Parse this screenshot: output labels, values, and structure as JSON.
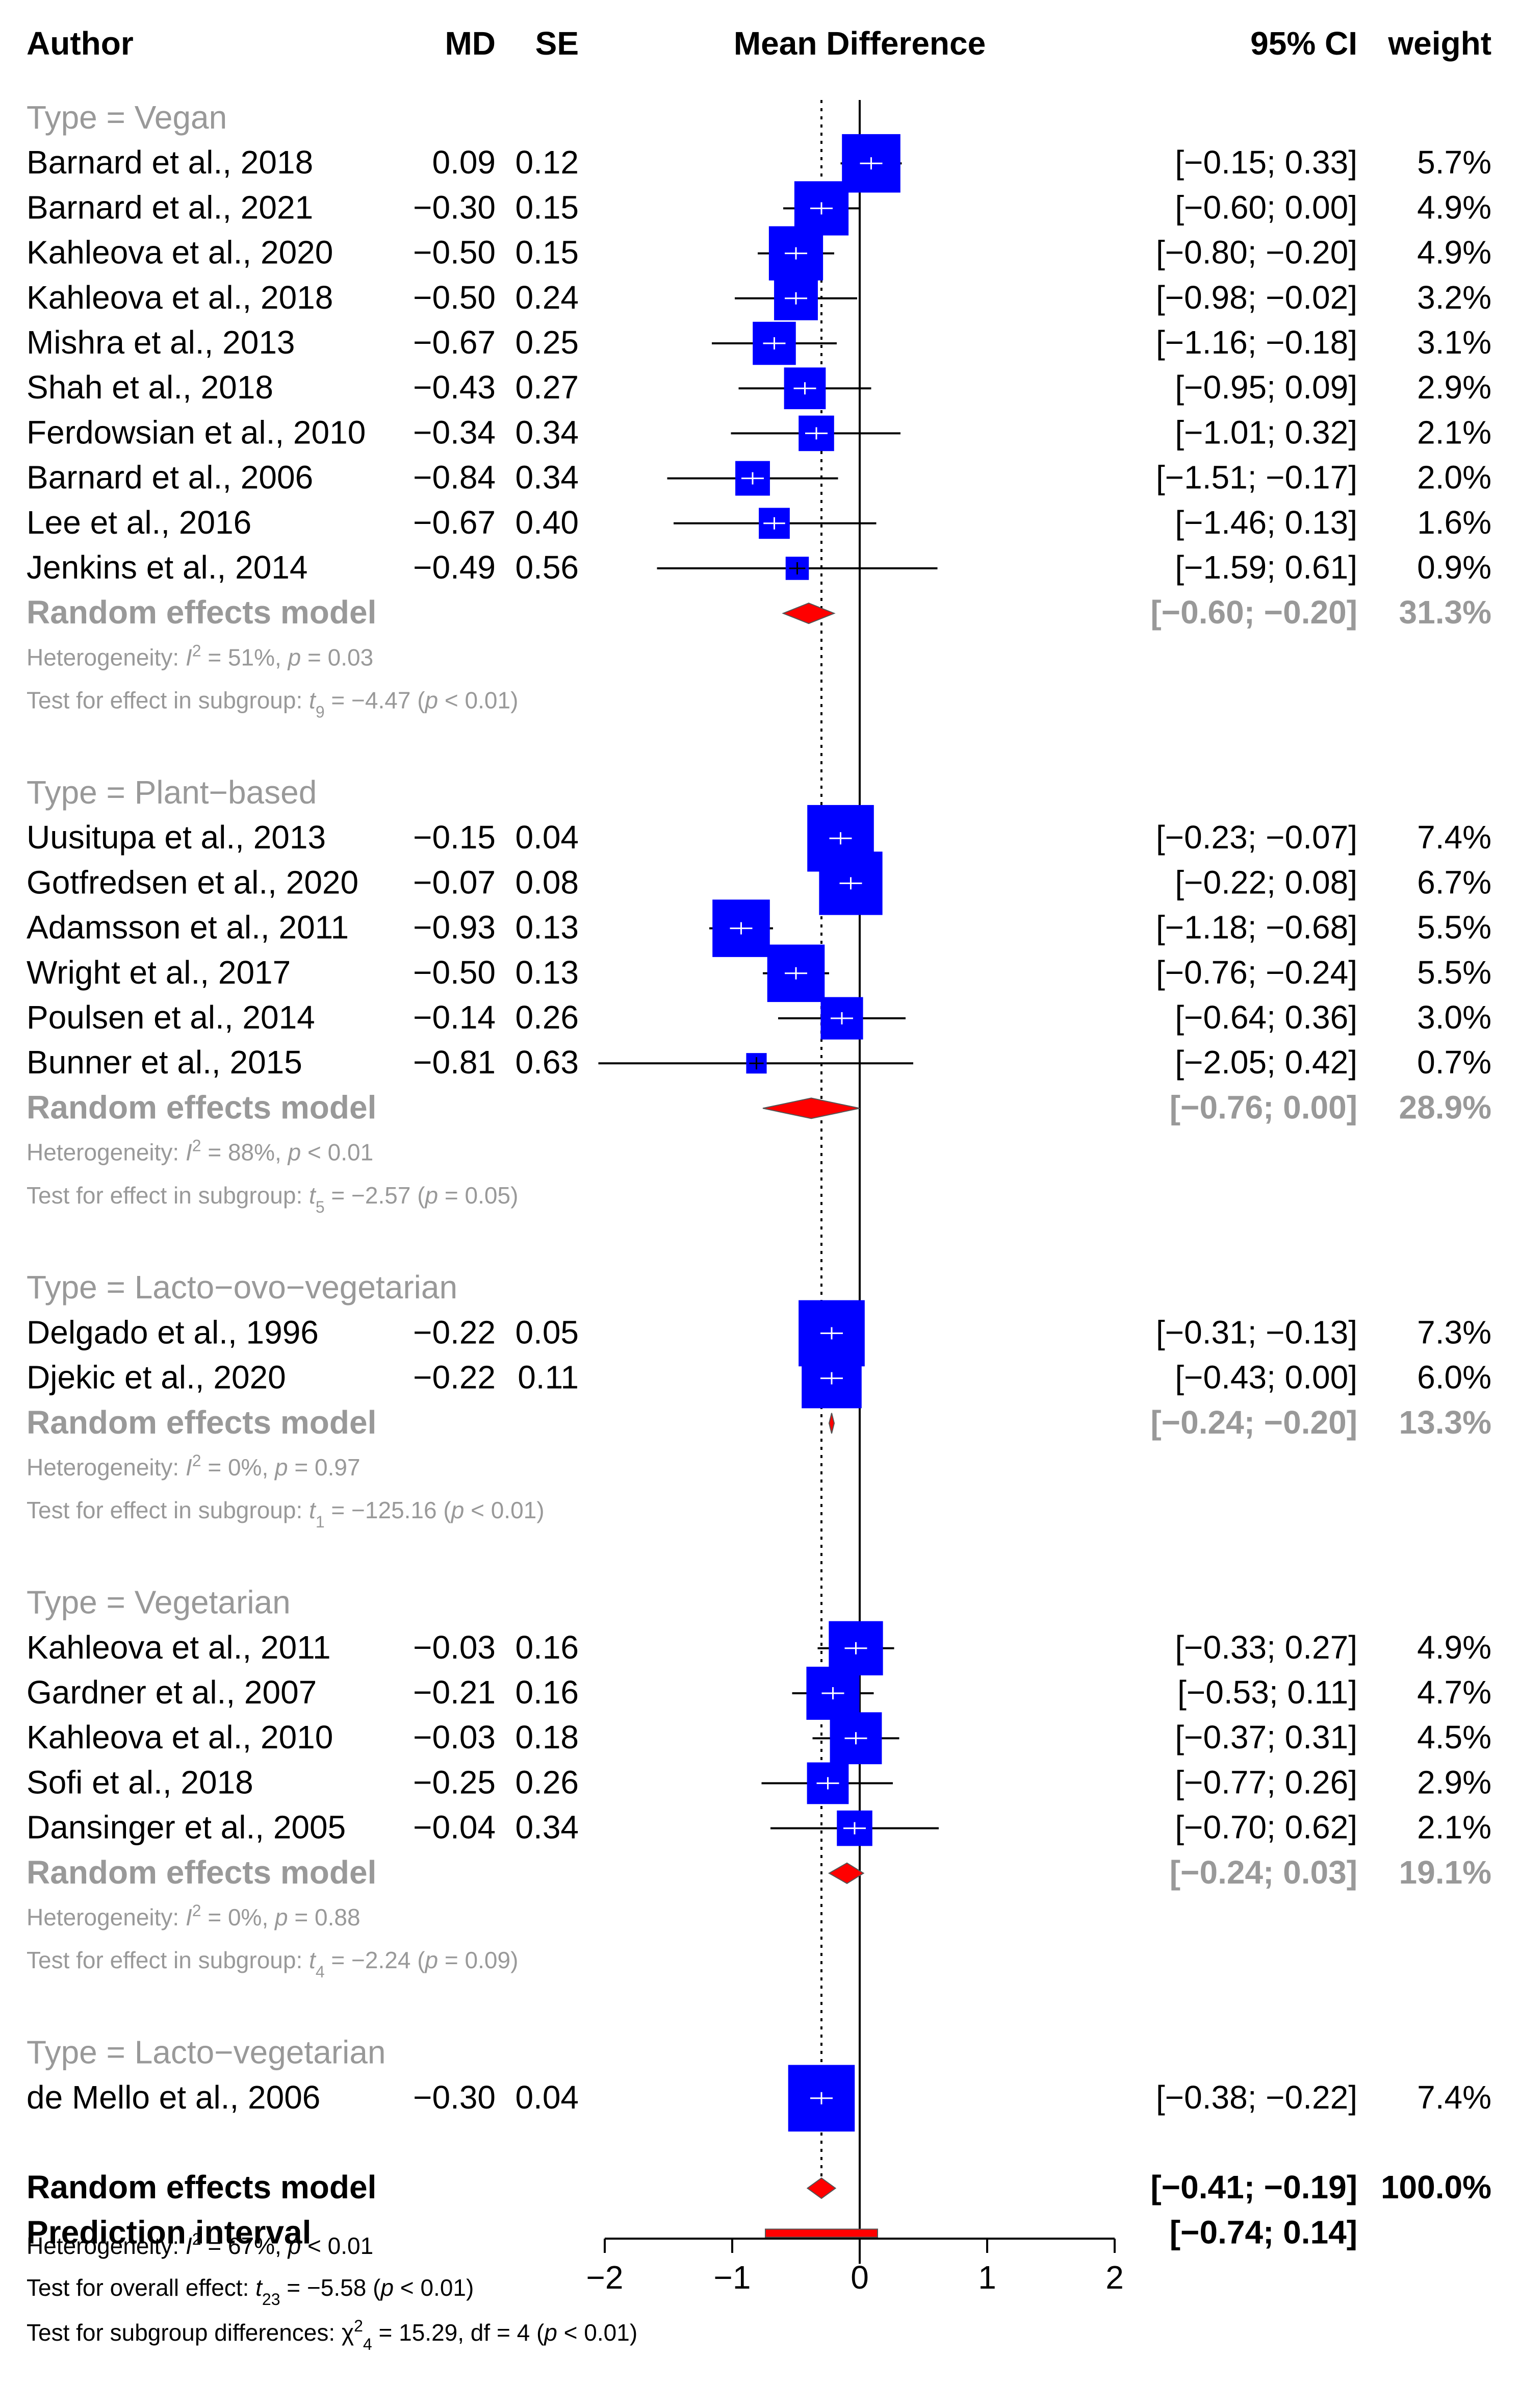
{
  "chart_data": {
    "type": "forest",
    "measure": "Mean Difference",
    "columns": {
      "author": "Author",
      "md": "MD",
      "se": "SE",
      "plot": "Mean Difference",
      "ci": "95% CI",
      "weight": "weight"
    },
    "xlim": [
      -2,
      2
    ],
    "ticks": [
      "−2",
      "−1",
      "0",
      "1",
      "2"
    ],
    "tick_values": [
      -2,
      -1,
      0,
      1,
      2
    ],
    "overall_md": -0.3,
    "subgroups": [
      {
        "label": "Type = Vegan",
        "studies": [
          {
            "author": "Barnard et al., 2018",
            "md": 0.09,
            "md_text": "0.09",
            "se_text": "0.12",
            "lo": -0.15,
            "hi": 0.33,
            "ci_text": "[−0.15;  0.33]",
            "w": 5.7,
            "w_text": "5.7%"
          },
          {
            "author": "Barnard et al., 2021",
            "md": -0.3,
            "md_text": "−0.30",
            "se_text": "0.15",
            "lo": -0.6,
            "hi": 0.0,
            "ci_text": "[−0.60;  0.00]",
            "w": 4.9,
            "w_text": "4.9%"
          },
          {
            "author": "Kahleova et al., 2020",
            "md": -0.5,
            "md_text": "−0.50",
            "se_text": "0.15",
            "lo": -0.8,
            "hi": -0.2,
            "ci_text": "[−0.80; −0.20]",
            "w": 4.9,
            "w_text": "4.9%"
          },
          {
            "author": "Kahleova et al., 2018",
            "md": -0.5,
            "md_text": "−0.50",
            "se_text": "0.24",
            "lo": -0.98,
            "hi": -0.02,
            "ci_text": "[−0.98; −0.02]",
            "w": 3.2,
            "w_text": "3.2%"
          },
          {
            "author": "Mishra et al., 2013",
            "md": -0.67,
            "md_text": "−0.67",
            "se_text": "0.25",
            "lo": -1.16,
            "hi": -0.18,
            "ci_text": "[−1.16; −0.18]",
            "w": 3.1,
            "w_text": "3.1%"
          },
          {
            "author": "Shah et al., 2018",
            "md": -0.43,
            "md_text": "−0.43",
            "se_text": "0.27",
            "lo": -0.95,
            "hi": 0.09,
            "ci_text": "[−0.95;  0.09]",
            "w": 2.9,
            "w_text": "2.9%"
          },
          {
            "author": "Ferdowsian et al., 2010",
            "md": -0.34,
            "md_text": "−0.34",
            "se_text": "0.34",
            "lo": -1.01,
            "hi": 0.32,
            "ci_text": "[−1.01;  0.32]",
            "w": 2.1,
            "w_text": "2.1%"
          },
          {
            "author": "Barnard et al., 2006",
            "md": -0.84,
            "md_text": "−0.84",
            "se_text": "0.34",
            "lo": -1.51,
            "hi": -0.17,
            "ci_text": "[−1.51; −0.17]",
            "w": 2.0,
            "w_text": "2.0%"
          },
          {
            "author": "Lee et al., 2016",
            "md": -0.67,
            "md_text": "−0.67",
            "se_text": "0.40",
            "lo": -1.46,
            "hi": 0.13,
            "ci_text": "[−1.46;  0.13]",
            "w": 1.6,
            "w_text": "1.6%"
          },
          {
            "author": "Jenkins et al., 2014",
            "md": -0.49,
            "md_text": "−0.49",
            "se_text": "0.56",
            "lo": -1.59,
            "hi": 0.61,
            "ci_text": "[−1.59;  0.61]",
            "w": 0.9,
            "w_text": "0.9%"
          }
        ],
        "pooled": {
          "label": "Random effects model",
          "md": -0.4,
          "lo": -0.6,
          "hi": -0.2,
          "ci_text": "[−0.60; −0.20]",
          "w_text": "31.3%"
        },
        "het_prefix": "Heterogeneity: ",
        "het_i2": "I",
        "het_rest": " = 51%, ",
        "het_p": "p",
        "het_pval": " = 0.03",
        "test_prefix": "Test for effect in subgroup: ",
        "test_stat": "t",
        "test_df": "9",
        "test_val": " = −4.47 (",
        "test_p": "p",
        "test_pval": " < 0.01)"
      },
      {
        "label": "Type = Plant−based",
        "studies": [
          {
            "author": "Uusitupa et al., 2013",
            "md": -0.15,
            "md_text": "−0.15",
            "se_text": "0.04",
            "lo": -0.23,
            "hi": -0.07,
            "ci_text": "[−0.23; −0.07]",
            "w": 7.4,
            "w_text": "7.4%"
          },
          {
            "author": "Gotfredsen et al., 2020",
            "md": -0.07,
            "md_text": "−0.07",
            "se_text": "0.08",
            "lo": -0.22,
            "hi": 0.08,
            "ci_text": "[−0.22;  0.08]",
            "w": 6.7,
            "w_text": "6.7%"
          },
          {
            "author": "Adamsson et al., 2011",
            "md": -0.93,
            "md_text": "−0.93",
            "se_text": "0.13",
            "lo": -1.18,
            "hi": -0.68,
            "ci_text": "[−1.18; −0.68]",
            "w": 5.5,
            "w_text": "5.5%"
          },
          {
            "author": "Wright et al., 2017",
            "md": -0.5,
            "md_text": "−0.50",
            "se_text": "0.13",
            "lo": -0.76,
            "hi": -0.24,
            "ci_text": "[−0.76; −0.24]",
            "w": 5.5,
            "w_text": "5.5%"
          },
          {
            "author": "Poulsen et al., 2014",
            "md": -0.14,
            "md_text": "−0.14",
            "se_text": "0.26",
            "lo": -0.64,
            "hi": 0.36,
            "ci_text": "[−0.64;  0.36]",
            "w": 3.0,
            "w_text": "3.0%"
          },
          {
            "author": "Bunner et al., 2015",
            "md": -0.81,
            "md_text": "−0.81",
            "se_text": "0.63",
            "lo": -2.05,
            "hi": 0.42,
            "ci_text": "[−2.05;  0.42]",
            "w": 0.7,
            "w_text": "0.7%"
          }
        ],
        "pooled": {
          "label": "Random effects model",
          "md": -0.38,
          "lo": -0.76,
          "hi": 0.0,
          "ci_text": "[−0.76;  0.00]",
          "w_text": "28.9%"
        },
        "het_prefix": "Heterogeneity: ",
        "het_i2": "I",
        "het_rest": " = 88%, ",
        "het_p": "p",
        "het_pval": " < 0.01",
        "test_prefix": "Test for effect in subgroup: ",
        "test_stat": "t",
        "test_df": "5",
        "test_val": " = −2.57 (",
        "test_p": "p",
        "test_pval": " = 0.05)"
      },
      {
        "label": "Type = Lacto−ovo−vegetarian",
        "studies": [
          {
            "author": "Delgado et al., 1996",
            "md": -0.22,
            "md_text": "−0.22",
            "se_text": "0.05",
            "lo": -0.31,
            "hi": -0.13,
            "ci_text": "[−0.31; −0.13]",
            "w": 7.3,
            "w_text": "7.3%"
          },
          {
            "author": "Djekic et al., 2020",
            "md": -0.22,
            "md_text": "−0.22",
            "se_text": "0.11",
            "lo": -0.43,
            "hi": 0.0,
            "ci_text": "[−0.43;  0.00]",
            "w": 6.0,
            "w_text": "6.0%"
          }
        ],
        "pooled": {
          "label": "Random effects model",
          "md": -0.22,
          "lo": -0.24,
          "hi": -0.2,
          "ci_text": "[−0.24; −0.20]",
          "w_text": "13.3%"
        },
        "het_prefix": "Heterogeneity: ",
        "het_i2": "I",
        "het_rest": " = 0%, ",
        "het_p": "p",
        "het_pval": " = 0.97",
        "test_prefix": "Test for effect in subgroup: ",
        "test_stat": "t",
        "test_df": "1",
        "test_val": " = −125.16 (",
        "test_p": "p",
        "test_pval": " < 0.01)"
      },
      {
        "label": "Type = Vegetarian",
        "studies": [
          {
            "author": "Kahleova et al., 2011",
            "md": -0.03,
            "md_text": "−0.03",
            "se_text": "0.16",
            "lo": -0.33,
            "hi": 0.27,
            "ci_text": "[−0.33;  0.27]",
            "w": 4.9,
            "w_text": "4.9%"
          },
          {
            "author": "Gardner et al., 2007",
            "md": -0.21,
            "md_text": "−0.21",
            "se_text": "0.16",
            "lo": -0.53,
            "hi": 0.11,
            "ci_text": "[−0.53;  0.11]",
            "w": 4.7,
            "w_text": "4.7%"
          },
          {
            "author": "Kahleova et al., 2010",
            "md": -0.03,
            "md_text": "−0.03",
            "se_text": "0.18",
            "lo": -0.37,
            "hi": 0.31,
            "ci_text": "[−0.37;  0.31]",
            "w": 4.5,
            "w_text": "4.5%"
          },
          {
            "author": "Sofi et al., 2018",
            "md": -0.25,
            "md_text": "−0.25",
            "se_text": "0.26",
            "lo": -0.77,
            "hi": 0.26,
            "ci_text": "[−0.77;  0.26]",
            "w": 2.9,
            "w_text": "2.9%"
          },
          {
            "author": "Dansinger et al., 2005",
            "md": -0.04,
            "md_text": "−0.04",
            "se_text": "0.34",
            "lo": -0.7,
            "hi": 0.62,
            "ci_text": "[−0.70;  0.62]",
            "w": 2.1,
            "w_text": "2.1%"
          }
        ],
        "pooled": {
          "label": "Random effects model",
          "md": -0.1,
          "lo": -0.24,
          "hi": 0.03,
          "ci_text": "[−0.24;  0.03]",
          "w_text": "19.1%"
        },
        "het_prefix": "Heterogeneity: ",
        "het_i2": "I",
        "het_rest": " = 0%, ",
        "het_p": "p",
        "het_pval": " = 0.88",
        "test_prefix": "Test for effect in subgroup: ",
        "test_stat": "t",
        "test_df": "4",
        "test_val": " = −2.24 (",
        "test_p": "p",
        "test_pval": " = 0.09)"
      },
      {
        "label": "Type = Lacto−vegetarian",
        "studies": [
          {
            "author": "de Mello et al., 2006",
            "md": -0.3,
            "md_text": "−0.30",
            "se_text": "0.04",
            "lo": -0.38,
            "hi": -0.22,
            "ci_text": "[−0.38; −0.22]",
            "w": 7.4,
            "w_text": "7.4%"
          }
        ]
      }
    ],
    "overall": {
      "label": "Random effects model",
      "md": -0.3,
      "lo": -0.41,
      "hi": -0.19,
      "ci_text": "[−0.41; −0.19]",
      "w_text": "100.0%"
    },
    "prediction": {
      "label": "Prediction interval",
      "lo": -0.74,
      "hi": 0.14,
      "ci_text": "[−0.74;  0.14]"
    },
    "footer": {
      "het_prefix": "Heterogeneity: ",
      "het_i2": "I",
      "het_rest": " = 67%, ",
      "het_p": "p",
      "het_pval": " < 0.01",
      "overall_prefix": "Test for overall effect: ",
      "overall_stat": "t",
      "overall_df": "23",
      "overall_val": " = −5.58 (",
      "overall_p": "p",
      "overall_pval": " < 0.01)",
      "sub_prefix": "Test for subgroup differences: ",
      "sub_stat": "χ",
      "sub_sup": "2",
      "sub_df": "4",
      "sub_val": " = 15.29, df = 4 (",
      "sub_p": "p",
      "sub_pval": " < 0.01)"
    },
    "colors": {
      "square": "#0000ff",
      "diamond": "#ff0000",
      "grey": "#999999",
      "line": "#000000"
    }
  }
}
